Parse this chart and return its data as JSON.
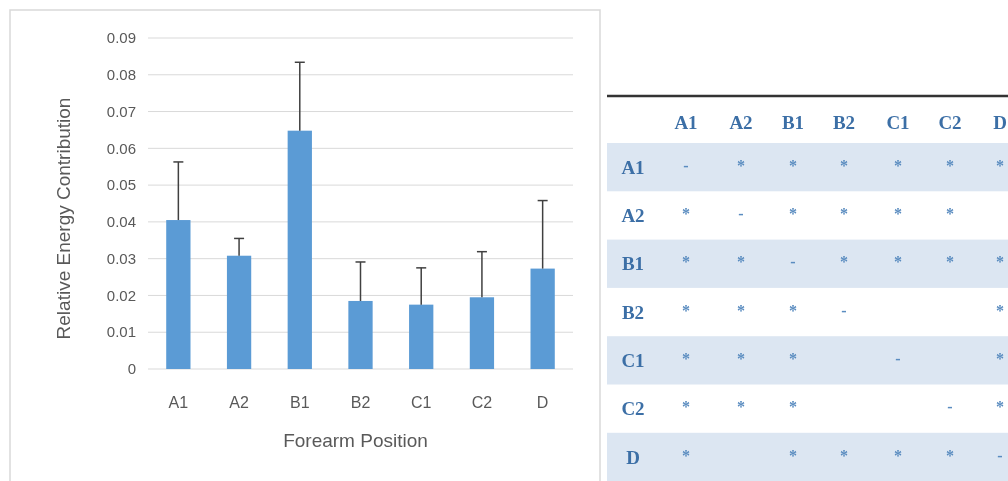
{
  "chart_data": [
    {
      "type": "bar",
      "xlabel": "Forearm Position",
      "ylabel": "Relative Energy Contribution",
      "categories": [
        "A1",
        "A2",
        "B1",
        "B2",
        "C1",
        "C2",
        "D"
      ],
      "values": [
        0.0405,
        0.0308,
        0.0648,
        0.0185,
        0.0175,
        0.0195,
        0.0273
      ],
      "errors": [
        [
          0.0405,
          0.0563
        ],
        [
          0.0308,
          0.0355
        ],
        [
          0.0648,
          0.0834
        ],
        [
          0.0185,
          0.0291
        ],
        [
          0.0175,
          0.0275
        ],
        [
          0.0195,
          0.0319
        ],
        [
          0.0273,
          0.0458
        ]
      ],
      "color": "#5b9bd5",
      "ylim": [
        0,
        0.09
      ],
      "yticks": [
        0,
        0.01,
        0.02,
        0.03,
        0.04,
        0.05,
        0.06,
        0.07,
        0.08,
        0.09
      ],
      "grid": "y"
    },
    {
      "type": "heatmap",
      "categories": [
        "A1",
        "A2",
        "B1",
        "B2",
        "C1",
        "C2",
        "D"
      ],
      "y_categories": [
        "A1",
        "A2",
        "B1",
        "B2",
        "C1",
        "C2",
        "D"
      ],
      "cells": [
        [
          null,
          null,
          null,
          null,
          null,
          null,
          null
        ],
        [
          null,
          null,
          null,
          null,
          null,
          null,
          null
        ],
        [
          null,
          null,
          null,
          null,
          null,
          null,
          null
        ],
        [
          null,
          null,
          null,
          null,
          null,
          null,
          null
        ],
        [
          null,
          null,
          null,
          null,
          null,
          null,
          null
        ],
        [
          null,
          null,
          null,
          null,
          null,
          null,
          null
        ],
        [
          null,
          null,
          null,
          null,
          null,
          null,
          null
        ]
      ],
      "cell_labels": [
        [
          "-",
          "*",
          "*",
          "*",
          "*",
          "*",
          "*"
        ],
        [
          "*",
          "-",
          "*",
          "*",
          "*",
          "*",
          null
        ],
        [
          "*",
          "*",
          "-",
          "*",
          "*",
          "*",
          "*"
        ],
        [
          "*",
          "*",
          "*",
          "-",
          null,
          null,
          "*"
        ],
        [
          "*",
          "*",
          "*",
          null,
          "-",
          null,
          "*"
        ],
        [
          "*",
          "*",
          "*",
          null,
          null,
          "-",
          "*"
        ],
        [
          "*",
          null,
          "*",
          "*",
          "*",
          "*",
          "-"
        ]
      ]
    }
  ]
}
